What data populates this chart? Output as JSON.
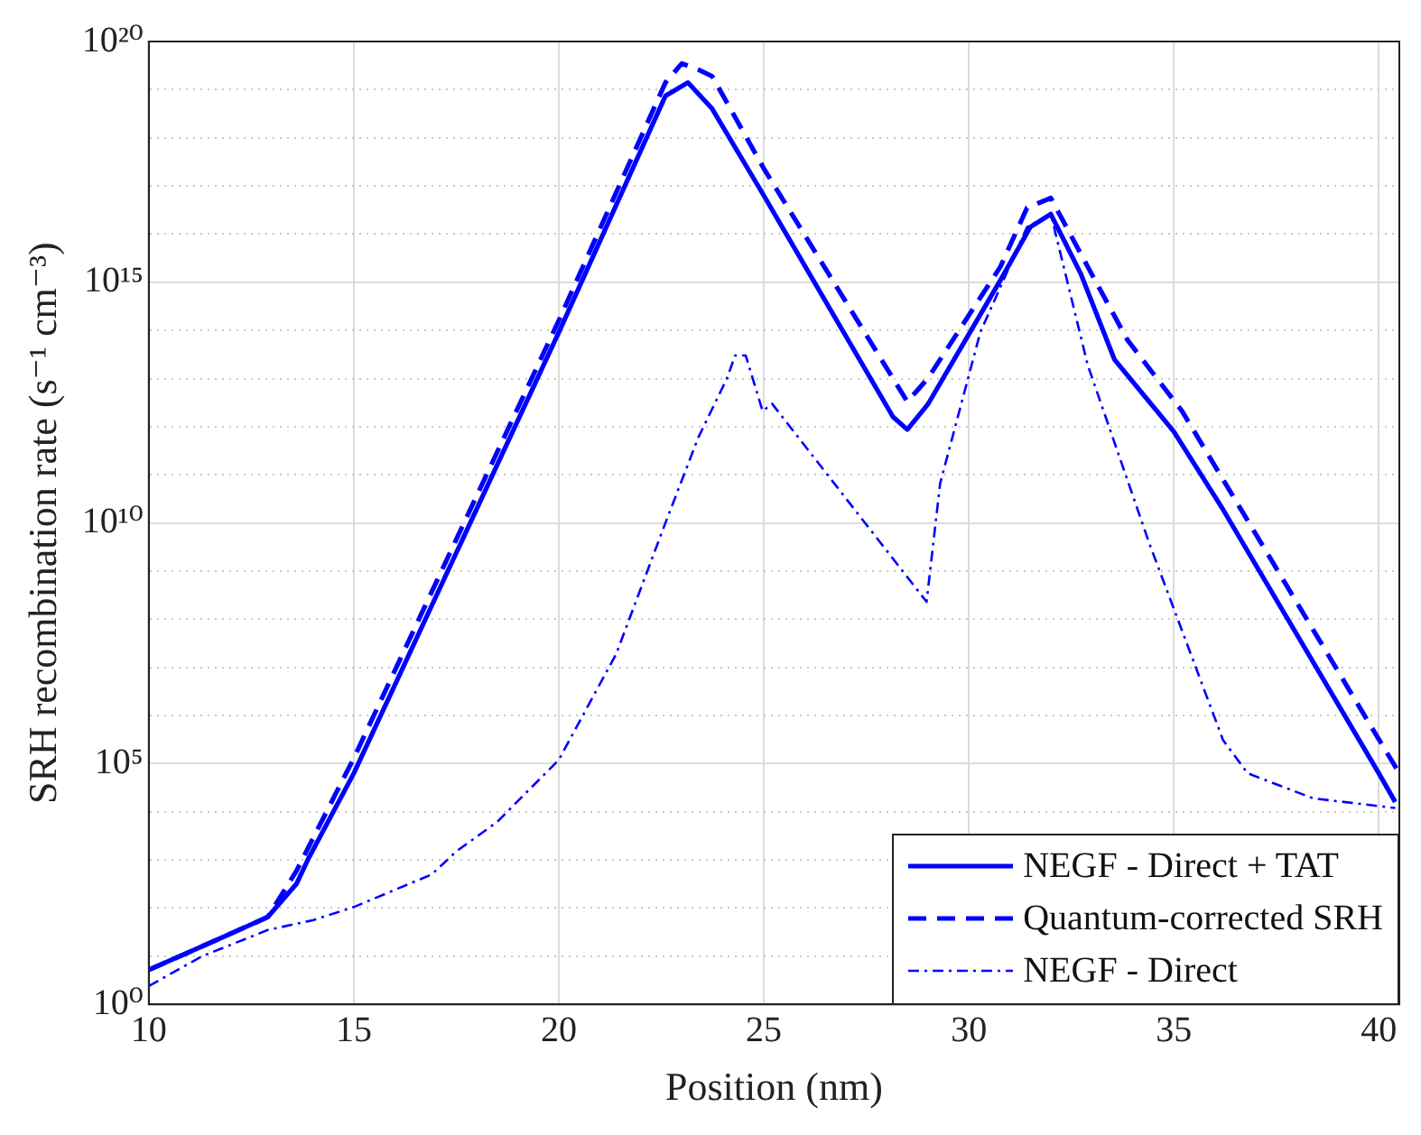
{
  "chart_data": {
    "type": "line",
    "xlabel": "Position (nm)",
    "ylabel": "SRH recombination rate (s⁻¹ cm⁻³)",
    "xlim": [
      10,
      40.5
    ],
    "xticks": [
      10,
      15,
      20,
      25,
      30,
      35,
      40
    ],
    "ylim": [
      1,
      1e+20
    ],
    "log": true,
    "yticks": [
      {
        "value": 1,
        "label": "10⁰"
      },
      {
        "value": 10.0,
        "label": null
      },
      {
        "value": 100.0,
        "label": null
      },
      {
        "value": 1000.0,
        "label": null
      },
      {
        "value": 10000.0,
        "label": null
      },
      {
        "value": 100000.0,
        "label": "10⁵"
      },
      {
        "value": 1000000.0,
        "label": null
      },
      {
        "value": 10000000.0,
        "label": null
      },
      {
        "value": 100000000.0,
        "label": null
      },
      {
        "value": 1000000000.0,
        "label": null
      },
      {
        "value": 10000000000.0,
        "label": "10¹⁰"
      },
      {
        "value": 100000000000.0,
        "label": null
      },
      {
        "value": 1000000000000.0,
        "label": null
      },
      {
        "value": 10000000000000.0,
        "label": null
      },
      {
        "value": 100000000000000.0,
        "label": null
      },
      {
        "value": 1000000000000000.0,
        "label": "10¹⁵"
      },
      {
        "value": 1e+16,
        "label": null
      },
      {
        "value": 1e+17,
        "label": null
      },
      {
        "value": 1e+18,
        "label": null
      },
      {
        "value": 1e+19,
        "label": null
      },
      {
        "value": 1e+20,
        "label": "10²⁰"
      }
    ],
    "grid": true,
    "legend": "bottom right",
    "marker": "none",
    "series": [
      {
        "name": "NEGF - Direct + TAT",
        "color": "#0000ff",
        "line_style": "solid",
        "x": [
          10,
          11.3,
          12.9,
          13.6,
          13.9,
          15,
          20,
          22.6,
          23.15,
          23.74,
          25,
          28.15,
          28.5,
          29,
          30.77,
          31.5,
          32,
          32.73,
          33.55,
          35,
          36.2,
          40,
          40.4
        ],
        "values": [
          5.2,
          16,
          65,
          316,
          1100,
          63000.0,
          91000000000000.0,
          7.4e+18,
          1.4e+19,
          4e+18,
          6.3e+16,
          1600000000000.0,
          870000000000.0,
          2900000000000.0,
          1100000000000000.0,
          1.4e+16,
          2.6e+16,
          1500000000000000.0,
          25000000000000.0,
          790000000000.0,
          19000000000.0,
          63000.0,
          16000.0
        ]
      },
      {
        "name": "Quantum-corrected SRH",
        "color": "#0000ff",
        "line_style": "dashed",
        "x": [
          10,
          11.3,
          12.9,
          13.6,
          15,
          20,
          22.6,
          23,
          23.4,
          23.74,
          25,
          28.5,
          29,
          30.77,
          31.42,
          32,
          32.9,
          33.87,
          35.2,
          40,
          40.5
        ],
        "values": [
          5.2,
          16,
          65,
          590,
          130000.0,
          160000000000000.0,
          1.4e+19,
          3.5e+19,
          2.6e+19,
          1.9e+19,
          2.3e+17,
          3300000000000.0,
          10000000000000.0,
          2100000000000000.0,
          3.5e+16,
          5.6e+16,
          2100000000000000.0,
          63000000000000.0,
          2100000000000.0,
          320000.0,
          63000.0
        ]
      },
      {
        "name": "NEGF - Direct",
        "color": "#0000ff",
        "line_style": "dashdot",
        "x": [
          10,
          11.3,
          12.9,
          14,
          15,
          16.9,
          17.5,
          18.5,
          20,
          21.4,
          22.6,
          23.4,
          24.1,
          24.3,
          24.56,
          24.97,
          25.2,
          28.97,
          29.3,
          30.28,
          31.42,
          32,
          32.9,
          34.4,
          36.2,
          36.8,
          38.4,
          40.4
        ],
        "values": [
          2.4,
          10,
          35,
          56,
          105,
          500,
          1500,
          6200,
          120000.0,
          19000000.0,
          10000000000.0,
          590000000000.0,
          10000000000000.0,
          30000000000000.0,
          30000000000000.0,
          2100000000000.0,
          3000000000000.0,
          230000000.0,
          66000000000.0,
          91000000000000.0,
          1.4e+16,
          2.6e+16,
          19000000000000.0,
          3800000000.0,
          310000.0,
          63000.0,
          19000.0,
          12000.0
        ]
      }
    ]
  }
}
